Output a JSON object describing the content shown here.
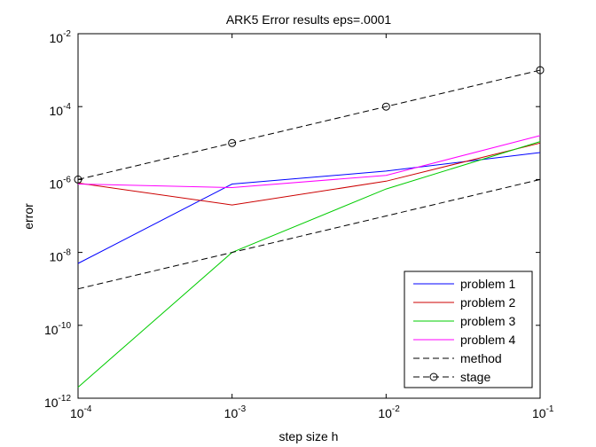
{
  "chart_data": {
    "type": "line",
    "title": "ARK5 Error results eps=.0001",
    "xlabel": "step size h",
    "ylabel": "error",
    "x_scale": "log",
    "y_scale": "log",
    "xlim": [
      0.0001,
      0.1
    ],
    "ylim": [
      1e-12,
      0.01
    ],
    "grid": false,
    "legend_position": "bottom-right",
    "x_ticks": [
      {
        "value": 0.0001,
        "base": "10",
        "exp": "-4"
      },
      {
        "value": 0.001,
        "base": "10",
        "exp": "-3"
      },
      {
        "value": 0.01,
        "base": "10",
        "exp": "-2"
      },
      {
        "value": 0.1,
        "base": "10",
        "exp": "-1"
      }
    ],
    "y_ticks": [
      {
        "value": 1e-12,
        "base": "10",
        "exp": "-12"
      },
      {
        "value": 1e-10,
        "base": "10",
        "exp": "-10"
      },
      {
        "value": 1e-08,
        "base": "10",
        "exp": "-8"
      },
      {
        "value": 1e-06,
        "base": "10",
        "exp": "-6"
      },
      {
        "value": 0.0001,
        "base": "10",
        "exp": "-4"
      },
      {
        "value": 0.01,
        "base": "10",
        "exp": "-2"
      }
    ],
    "x": [
      0.0001,
      0.001,
      0.01,
      0.1
    ],
    "series": [
      {
        "name": "problem 1",
        "color": "#0000ff",
        "dash": "solid",
        "marker": "none",
        "values": [
          5e-09,
          7.5e-07,
          1.7e-06,
          5.5e-06
        ]
      },
      {
        "name": "problem 2",
        "color": "#cc0000",
        "dash": "solid",
        "marker": "none",
        "values": [
          8e-07,
          2e-07,
          9e-07,
          1e-05
        ]
      },
      {
        "name": "problem 3",
        "color": "#00cc00",
        "dash": "solid",
        "marker": "none",
        "values": [
          2e-12,
          1e-08,
          5.5e-07,
          1.1e-05
        ]
      },
      {
        "name": "problem 4",
        "color": "#ff00ff",
        "dash": "solid",
        "marker": "none",
        "values": [
          7.5e-07,
          6e-07,
          1.3e-06,
          1.6e-05
        ]
      },
      {
        "name": "method",
        "color": "#000000",
        "dash": "dashed",
        "marker": "none",
        "values": [
          1e-09,
          1e-08,
          1e-07,
          1e-06
        ]
      },
      {
        "name": "stage",
        "color": "#000000",
        "dash": "dashed",
        "marker": "circle",
        "values": [
          1e-06,
          1e-05,
          0.0001,
          0.001
        ]
      }
    ]
  }
}
